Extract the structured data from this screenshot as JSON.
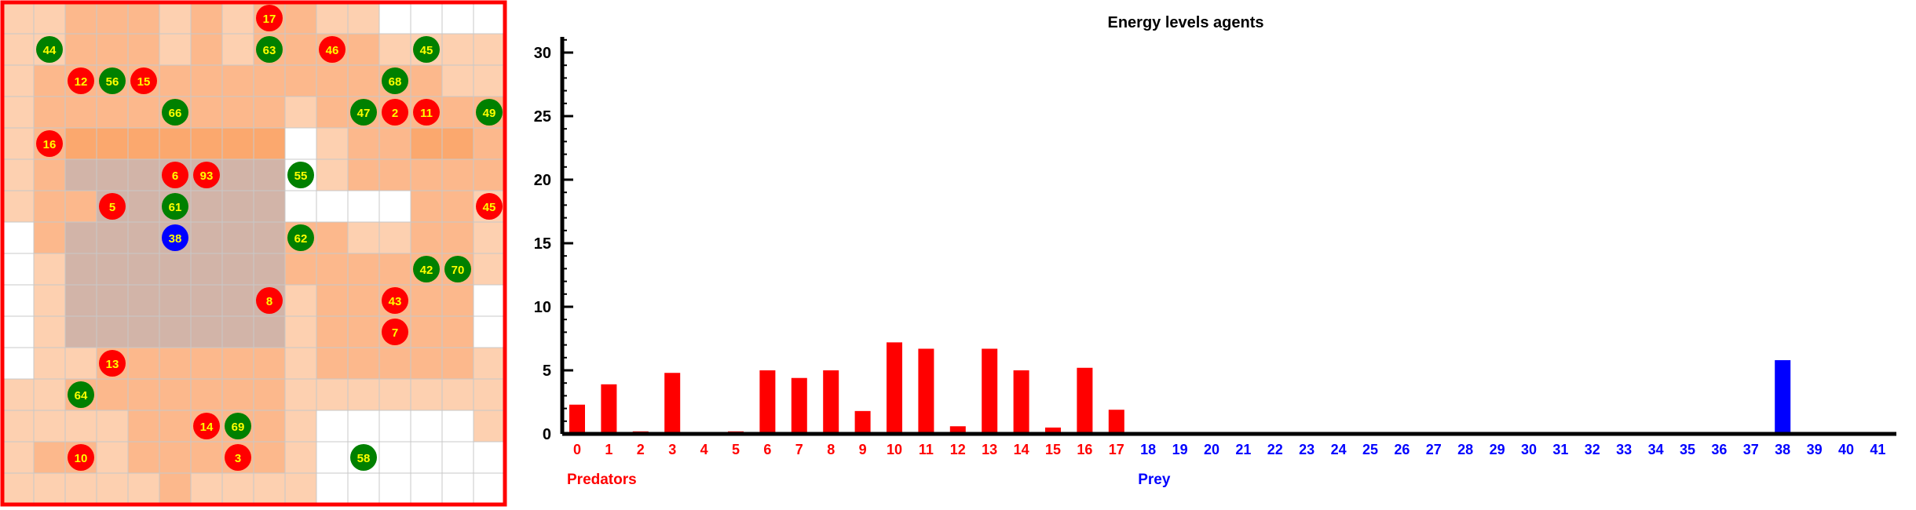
{
  "grid": {
    "cols": 16,
    "rows": 16,
    "palette": [
      "#ffffff",
      "#fdd0b0",
      "#fcb88c",
      "#fba86e",
      "#d2b4a8"
    ],
    "shades": [
      [
        1,
        1,
        2,
        2,
        2,
        1,
        2,
        1,
        2,
        2,
        1,
        1,
        0,
        0,
        0,
        0
      ],
      [
        1,
        1,
        2,
        2,
        2,
        1,
        2,
        1,
        2,
        2,
        2,
        2,
        1,
        1,
        1,
        1
      ],
      [
        1,
        2,
        2,
        2,
        2,
        2,
        2,
        2,
        2,
        2,
        2,
        2,
        2,
        2,
        1,
        1
      ],
      [
        1,
        2,
        2,
        2,
        2,
        2,
        2,
        2,
        2,
        1,
        2,
        2,
        2,
        2,
        2,
        2
      ],
      [
        1,
        2,
        3,
        3,
        3,
        3,
        3,
        3,
        3,
        0,
        1,
        2,
        2,
        3,
        3,
        2
      ],
      [
        1,
        2,
        4,
        4,
        4,
        4,
        4,
        4,
        4,
        0,
        1,
        2,
        2,
        2,
        2,
        2
      ],
      [
        1,
        2,
        2,
        4,
        4,
        4,
        4,
        4,
        4,
        0,
        0,
        0,
        0,
        2,
        2,
        1
      ],
      [
        0,
        2,
        4,
        4,
        4,
        4,
        4,
        4,
        4,
        2,
        2,
        1,
        1,
        2,
        2,
        1
      ],
      [
        0,
        1,
        4,
        4,
        4,
        4,
        4,
        4,
        4,
        2,
        2,
        2,
        2,
        2,
        2,
        1
      ],
      [
        0,
        1,
        4,
        4,
        4,
        4,
        4,
        4,
        4,
        1,
        2,
        2,
        2,
        2,
        2,
        0
      ],
      [
        0,
        1,
        4,
        4,
        4,
        4,
        4,
        4,
        4,
        1,
        2,
        2,
        2,
        2,
        2,
        0
      ],
      [
        0,
        1,
        1,
        2,
        2,
        2,
        2,
        2,
        2,
        1,
        2,
        2,
        2,
        2,
        2,
        1
      ],
      [
        1,
        1,
        2,
        2,
        2,
        2,
        2,
        2,
        2,
        1,
        1,
        1,
        1,
        1,
        1,
        1
      ],
      [
        1,
        1,
        1,
        1,
        2,
        2,
        2,
        2,
        2,
        1,
        0,
        0,
        0,
        0,
        0,
        1
      ],
      [
        1,
        2,
        2,
        1,
        2,
        2,
        2,
        2,
        2,
        1,
        0,
        0,
        0,
        0,
        0,
        0
      ],
      [
        1,
        1,
        1,
        1,
        1,
        2,
        1,
        1,
        1,
        1,
        0,
        0,
        0,
        0,
        0,
        0
      ]
    ]
  },
  "agents": [
    {
      "id": "17",
      "col": 8,
      "row": 0,
      "kind": "predator"
    },
    {
      "id": "44",
      "col": 1,
      "row": 1,
      "kind": "prey"
    },
    {
      "id": "63",
      "col": 8,
      "row": 1,
      "kind": "prey"
    },
    {
      "id": "46",
      "col": 10,
      "row": 1,
      "kind": "predator"
    },
    {
      "id": "45",
      "col": 13,
      "row": 1,
      "kind": "prey"
    },
    {
      "id": "12",
      "col": 2,
      "row": 2,
      "kind": "predator"
    },
    {
      "id": "56",
      "col": 3,
      "row": 2,
      "kind": "prey"
    },
    {
      "id": "15",
      "col": 4,
      "row": 2,
      "kind": "predator"
    },
    {
      "id": "68",
      "col": 12,
      "row": 2,
      "kind": "prey"
    },
    {
      "id": "66",
      "col": 5,
      "row": 3,
      "kind": "prey"
    },
    {
      "id": "47",
      "col": 11,
      "row": 3,
      "kind": "prey"
    },
    {
      "id": "2",
      "col": 12,
      "row": 3,
      "kind": "predator"
    },
    {
      "id": "11",
      "col": 13,
      "row": 3,
      "kind": "predator"
    },
    {
      "id": "49",
      "col": 15,
      "row": 3,
      "kind": "prey"
    },
    {
      "id": "16",
      "col": 1,
      "row": 4,
      "kind": "predator"
    },
    {
      "id": "6",
      "col": 5,
      "row": 5,
      "kind": "predator"
    },
    {
      "id": "93",
      "col": 6,
      "row": 5,
      "kind": "predator"
    },
    {
      "id": "55",
      "col": 9,
      "row": 5,
      "kind": "prey"
    },
    {
      "id": "5",
      "col": 3,
      "row": 6,
      "kind": "predator"
    },
    {
      "id": "61",
      "col": 5,
      "row": 6,
      "kind": "prey"
    },
    {
      "id": "45",
      "col": 15,
      "row": 6,
      "kind": "predator"
    },
    {
      "id": "38",
      "col": 5,
      "row": 7,
      "kind": "active"
    },
    {
      "id": "62",
      "col": 9,
      "row": 7,
      "kind": "prey"
    },
    {
      "id": "42",
      "col": 13,
      "row": 8,
      "kind": "prey"
    },
    {
      "id": "70",
      "col": 14,
      "row": 8,
      "kind": "prey"
    },
    {
      "id": "8",
      "col": 8,
      "row": 9,
      "kind": "predator"
    },
    {
      "id": "43",
      "col": 12,
      "row": 9,
      "kind": "predator"
    },
    {
      "id": "7",
      "col": 12,
      "row": 10,
      "kind": "predator"
    },
    {
      "id": "13",
      "col": 3,
      "row": 11,
      "kind": "predator"
    },
    {
      "id": "64",
      "col": 2,
      "row": 12,
      "kind": "prey"
    },
    {
      "id": "14",
      "col": 6,
      "row": 13,
      "kind": "predator"
    },
    {
      "id": "69",
      "col": 7,
      "row": 13,
      "kind": "prey"
    },
    {
      "id": "10",
      "col": 2,
      "row": 14,
      "kind": "predator"
    },
    {
      "id": "3",
      "col": 7,
      "row": 14,
      "kind": "predator"
    },
    {
      "id": "58",
      "col": 11,
      "row": 14,
      "kind": "prey"
    }
  ],
  "colors": {
    "predator": "#ff0000",
    "prey": "#008000",
    "active": "#0000ff",
    "agent_label": "#ffff00",
    "grid_border": "#ff0000",
    "grid_lines": "#c8c8c8",
    "axis": "#000000"
  },
  "chart_data": {
    "type": "bar",
    "title": "Energy levels agents",
    "categories": [
      "0",
      "1",
      "2",
      "3",
      "4",
      "5",
      "6",
      "7",
      "8",
      "9",
      "10",
      "11",
      "12",
      "13",
      "14",
      "15",
      "16",
      "17",
      "18",
      "19",
      "20",
      "21",
      "22",
      "23",
      "24",
      "25",
      "26",
      "27",
      "28",
      "29",
      "30",
      "31",
      "32",
      "33",
      "34",
      "35",
      "36",
      "37",
      "38",
      "39",
      "40",
      "41"
    ],
    "values": [
      2.3,
      3.9,
      0.2,
      4.8,
      0,
      0.2,
      5.0,
      4.4,
      5.0,
      1.8,
      7.2,
      6.7,
      0.6,
      6.7,
      5.0,
      0.5,
      5.2,
      1.9,
      0,
      0,
      0,
      0,
      0,
      0,
      0,
      0,
      0,
      0,
      0,
      0,
      0,
      0,
      0,
      0,
      0,
      0,
      0,
      0,
      5.8,
      0,
      0,
      0
    ],
    "bar_colors": [
      "#ff0000",
      "#ff0000",
      "#ff0000",
      "#ff0000",
      "#ff0000",
      "#ff0000",
      "#ff0000",
      "#ff0000",
      "#ff0000",
      "#ff0000",
      "#ff0000",
      "#ff0000",
      "#ff0000",
      "#ff0000",
      "#ff0000",
      "#ff0000",
      "#ff0000",
      "#ff0000",
      "#0000ff",
      "#0000ff",
      "#0000ff",
      "#0000ff",
      "#0000ff",
      "#0000ff",
      "#0000ff",
      "#0000ff",
      "#0000ff",
      "#0000ff",
      "#0000ff",
      "#0000ff",
      "#0000ff",
      "#0000ff",
      "#0000ff",
      "#0000ff",
      "#0000ff",
      "#0000ff",
      "#0000ff",
      "#0000ff",
      "#0000ff",
      "#0000ff",
      "#0000ff",
      "#0000ff"
    ],
    "ylim": [
      0,
      31
    ],
    "yticks": [
      0,
      5,
      10,
      15,
      20,
      25,
      30
    ],
    "groups": [
      {
        "label": "Predators",
        "color": "#ff0000",
        "first": 0
      },
      {
        "label": "Prey",
        "color": "#0000ff",
        "first": 18
      }
    ],
    "grid": false
  }
}
